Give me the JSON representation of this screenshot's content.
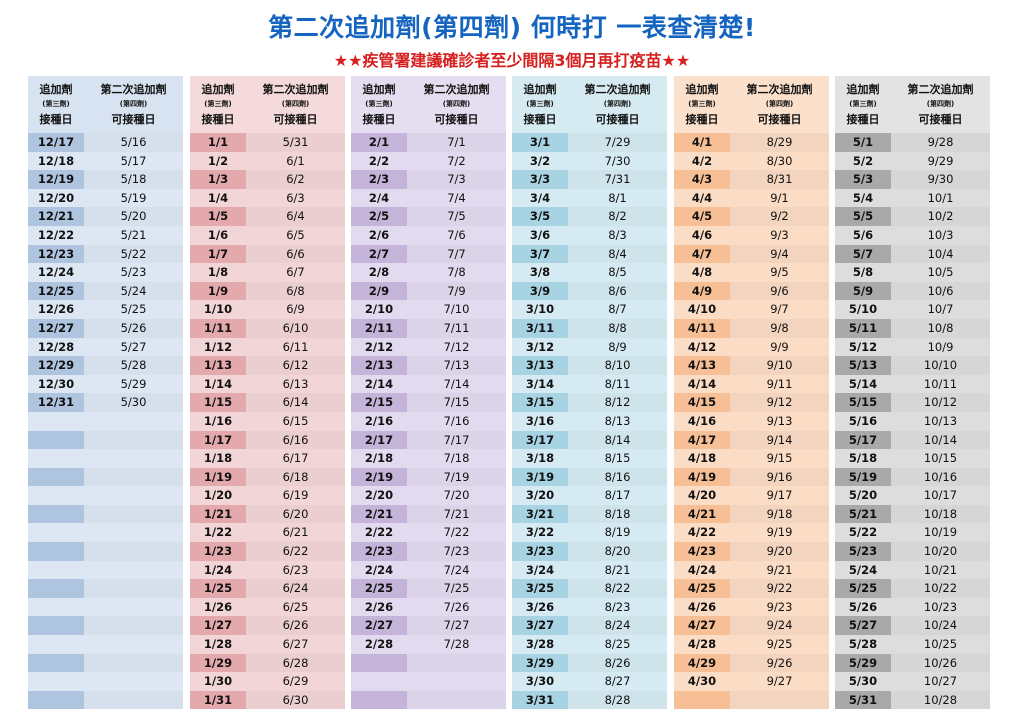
{
  "title": "第二次追加劑(第四劑) 何時打 一表查清楚!",
  "subtitle": "★★疾管署建議確診者至少間隔3個月再打疫苗★★",
  "header": {
    "col1_line1": "追加劑",
    "col1_line2": "(第三劑)",
    "col1_line3": "接種日",
    "col2_line1": "第二次追加劑",
    "col2_line2": "(第四劑)",
    "col2_line3": "可接種日"
  },
  "colors": {
    "blue_header": "#d7e3f0",
    "blue_dark": "#aec4df",
    "blue_light": "#dce7f3",
    "red_header": "#f4dada",
    "red_dark": "#e3a9ac",
    "red_light": "#f2d5d6",
    "purple_header": "#e5def0",
    "purple_dark": "#c5b4d9",
    "purple_light": "#e2daee",
    "cyan_header": "#d6ebf1",
    "cyan_dark": "#a8d3e2",
    "cyan_light": "#d5eaf2",
    "orange_header": "#fbe1cc",
    "orange_dark": "#f7bf95",
    "orange_light": "#fbdcc5",
    "gray_header": "#e3e3e3",
    "gray_dark": "#a9a9a9",
    "gray_light": "#dddddd"
  },
  "blocks": [
    {
      "name": "december",
      "rows": [
        [
          "12/17",
          "5/16"
        ],
        [
          "12/18",
          "5/17"
        ],
        [
          "12/19",
          "5/18"
        ],
        [
          "12/20",
          "5/19"
        ],
        [
          "12/21",
          "5/20"
        ],
        [
          "12/22",
          "5/21"
        ],
        [
          "12/23",
          "5/22"
        ],
        [
          "12/24",
          "5/23"
        ],
        [
          "12/25",
          "5/24"
        ],
        [
          "12/26",
          "5/25"
        ],
        [
          "12/27",
          "5/26"
        ],
        [
          "12/28",
          "5/27"
        ],
        [
          "12/29",
          "5/28"
        ],
        [
          "12/30",
          "5/29"
        ],
        [
          "12/31",
          "5/30"
        ],
        [
          "",
          ""
        ],
        [
          "",
          ""
        ],
        [
          "",
          ""
        ],
        [
          "",
          ""
        ],
        [
          "",
          ""
        ],
        [
          "",
          ""
        ],
        [
          "",
          ""
        ],
        [
          "",
          ""
        ],
        [
          "",
          ""
        ],
        [
          "",
          ""
        ],
        [
          "",
          ""
        ],
        [
          "",
          ""
        ],
        [
          "",
          ""
        ],
        [
          "",
          ""
        ],
        [
          "",
          ""
        ],
        [
          "",
          ""
        ]
      ]
    },
    {
      "name": "january",
      "rows": [
        [
          "1/1",
          "5/31"
        ],
        [
          "1/2",
          "6/1"
        ],
        [
          "1/3",
          "6/2"
        ],
        [
          "1/4",
          "6/3"
        ],
        [
          "1/5",
          "6/4"
        ],
        [
          "1/6",
          "6/5"
        ],
        [
          "1/7",
          "6/6"
        ],
        [
          "1/8",
          "6/7"
        ],
        [
          "1/9",
          "6/8"
        ],
        [
          "1/10",
          "6/9"
        ],
        [
          "1/11",
          "6/10"
        ],
        [
          "1/12",
          "6/11"
        ],
        [
          "1/13",
          "6/12"
        ],
        [
          "1/14",
          "6/13"
        ],
        [
          "1/15",
          "6/14"
        ],
        [
          "1/16",
          "6/15"
        ],
        [
          "1/17",
          "6/16"
        ],
        [
          "1/18",
          "6/17"
        ],
        [
          "1/19",
          "6/18"
        ],
        [
          "1/20",
          "6/19"
        ],
        [
          "1/21",
          "6/20"
        ],
        [
          "1/22",
          "6/21"
        ],
        [
          "1/23",
          "6/22"
        ],
        [
          "1/24",
          "6/23"
        ],
        [
          "1/25",
          "6/24"
        ],
        [
          "1/26",
          "6/25"
        ],
        [
          "1/27",
          "6/26"
        ],
        [
          "1/28",
          "6/27"
        ],
        [
          "1/29",
          "6/28"
        ],
        [
          "1/30",
          "6/29"
        ],
        [
          "1/31",
          "6/30"
        ]
      ]
    },
    {
      "name": "february",
      "rows": [
        [
          "2/1",
          "7/1"
        ],
        [
          "2/2",
          "7/2"
        ],
        [
          "2/3",
          "7/3"
        ],
        [
          "2/4",
          "7/4"
        ],
        [
          "2/5",
          "7/5"
        ],
        [
          "2/6",
          "7/6"
        ],
        [
          "2/7",
          "7/7"
        ],
        [
          "2/8",
          "7/8"
        ],
        [
          "2/9",
          "7/9"
        ],
        [
          "2/10",
          "7/10"
        ],
        [
          "2/11",
          "7/11"
        ],
        [
          "2/12",
          "7/12"
        ],
        [
          "2/13",
          "7/13"
        ],
        [
          "2/14",
          "7/14"
        ],
        [
          "2/15",
          "7/15"
        ],
        [
          "2/16",
          "7/16"
        ],
        [
          "2/17",
          "7/17"
        ],
        [
          "2/18",
          "7/18"
        ],
        [
          "2/19",
          "7/19"
        ],
        [
          "2/20",
          "7/20"
        ],
        [
          "2/21",
          "7/21"
        ],
        [
          "2/22",
          "7/22"
        ],
        [
          "2/23",
          "7/23"
        ],
        [
          "2/24",
          "7/24"
        ],
        [
          "2/25",
          "7/25"
        ],
        [
          "2/26",
          "7/26"
        ],
        [
          "2/27",
          "7/27"
        ],
        [
          "2/28",
          "7/28"
        ],
        [
          "",
          ""
        ],
        [
          "",
          ""
        ],
        [
          "",
          ""
        ]
      ]
    },
    {
      "name": "march",
      "rows": [
        [
          "3/1",
          "7/29"
        ],
        [
          "3/2",
          "7/30"
        ],
        [
          "3/3",
          "7/31"
        ],
        [
          "3/4",
          "8/1"
        ],
        [
          "3/5",
          "8/2"
        ],
        [
          "3/6",
          "8/3"
        ],
        [
          "3/7",
          "8/4"
        ],
        [
          "3/8",
          "8/5"
        ],
        [
          "3/9",
          "8/6"
        ],
        [
          "3/10",
          "8/7"
        ],
        [
          "3/11",
          "8/8"
        ],
        [
          "3/12",
          "8/9"
        ],
        [
          "3/13",
          "8/10"
        ],
        [
          "3/14",
          "8/11"
        ],
        [
          "3/15",
          "8/12"
        ],
        [
          "3/16",
          "8/13"
        ],
        [
          "3/17",
          "8/14"
        ],
        [
          "3/18",
          "8/15"
        ],
        [
          "3/19",
          "8/16"
        ],
        [
          "3/20",
          "8/17"
        ],
        [
          "3/21",
          "8/18"
        ],
        [
          "3/22",
          "8/19"
        ],
        [
          "3/23",
          "8/20"
        ],
        [
          "3/24",
          "8/21"
        ],
        [
          "3/25",
          "8/22"
        ],
        [
          "3/26",
          "8/23"
        ],
        [
          "3/27",
          "8/24"
        ],
        [
          "3/28",
          "8/25"
        ],
        [
          "3/29",
          "8/26"
        ],
        [
          "3/30",
          "8/27"
        ],
        [
          "3/31",
          "8/28"
        ]
      ]
    },
    {
      "name": "april",
      "rows": [
        [
          "4/1",
          "8/29"
        ],
        [
          "4/2",
          "8/30"
        ],
        [
          "4/3",
          "8/31"
        ],
        [
          "4/4",
          "9/1"
        ],
        [
          "4/5",
          "9/2"
        ],
        [
          "4/6",
          "9/3"
        ],
        [
          "4/7",
          "9/4"
        ],
        [
          "4/8",
          "9/5"
        ],
        [
          "4/9",
          "9/6"
        ],
        [
          "4/10",
          "9/7"
        ],
        [
          "4/11",
          "9/8"
        ],
        [
          "4/12",
          "9/9"
        ],
        [
          "4/13",
          "9/10"
        ],
        [
          "4/14",
          "9/11"
        ],
        [
          "4/15",
          "9/12"
        ],
        [
          "4/16",
          "9/13"
        ],
        [
          "4/17",
          "9/14"
        ],
        [
          "4/18",
          "9/15"
        ],
        [
          "4/19",
          "9/16"
        ],
        [
          "4/20",
          "9/17"
        ],
        [
          "4/21",
          "9/18"
        ],
        [
          "4/22",
          "9/19"
        ],
        [
          "4/23",
          "9/20"
        ],
        [
          "4/24",
          "9/21"
        ],
        [
          "4/25",
          "9/22"
        ],
        [
          "4/26",
          "9/23"
        ],
        [
          "4/27",
          "9/24"
        ],
        [
          "4/28",
          "9/25"
        ],
        [
          "4/29",
          "9/26"
        ],
        [
          "4/30",
          "9/27"
        ],
        [
          "",
          ""
        ]
      ]
    },
    {
      "name": "may",
      "rows": [
        [
          "5/1",
          "9/28"
        ],
        [
          "5/2",
          "9/29"
        ],
        [
          "5/3",
          "9/30"
        ],
        [
          "5/4",
          "10/1"
        ],
        [
          "5/5",
          "10/2"
        ],
        [
          "5/6",
          "10/3"
        ],
        [
          "5/7",
          "10/4"
        ],
        [
          "5/8",
          "10/5"
        ],
        [
          "5/9",
          "10/6"
        ],
        [
          "5/10",
          "10/7"
        ],
        [
          "5/11",
          "10/8"
        ],
        [
          "5/12",
          "10/9"
        ],
        [
          "5/13",
          "10/10"
        ],
        [
          "5/14",
          "10/11"
        ],
        [
          "5/15",
          "10/12"
        ],
        [
          "5/16",
          "10/13"
        ],
        [
          "5/17",
          "10/14"
        ],
        [
          "5/18",
          "10/15"
        ],
        [
          "5/19",
          "10/16"
        ],
        [
          "5/20",
          "10/17"
        ],
        [
          "5/21",
          "10/18"
        ],
        [
          "5/22",
          "10/19"
        ],
        [
          "5/23",
          "10/20"
        ],
        [
          "5/24",
          "10/21"
        ],
        [
          "5/25",
          "10/22"
        ],
        [
          "5/26",
          "10/23"
        ],
        [
          "5/27",
          "10/24"
        ],
        [
          "5/28",
          "10/25"
        ],
        [
          "5/29",
          "10/26"
        ],
        [
          "5/30",
          "10/27"
        ],
        [
          "5/31",
          "10/28"
        ]
      ]
    }
  ]
}
